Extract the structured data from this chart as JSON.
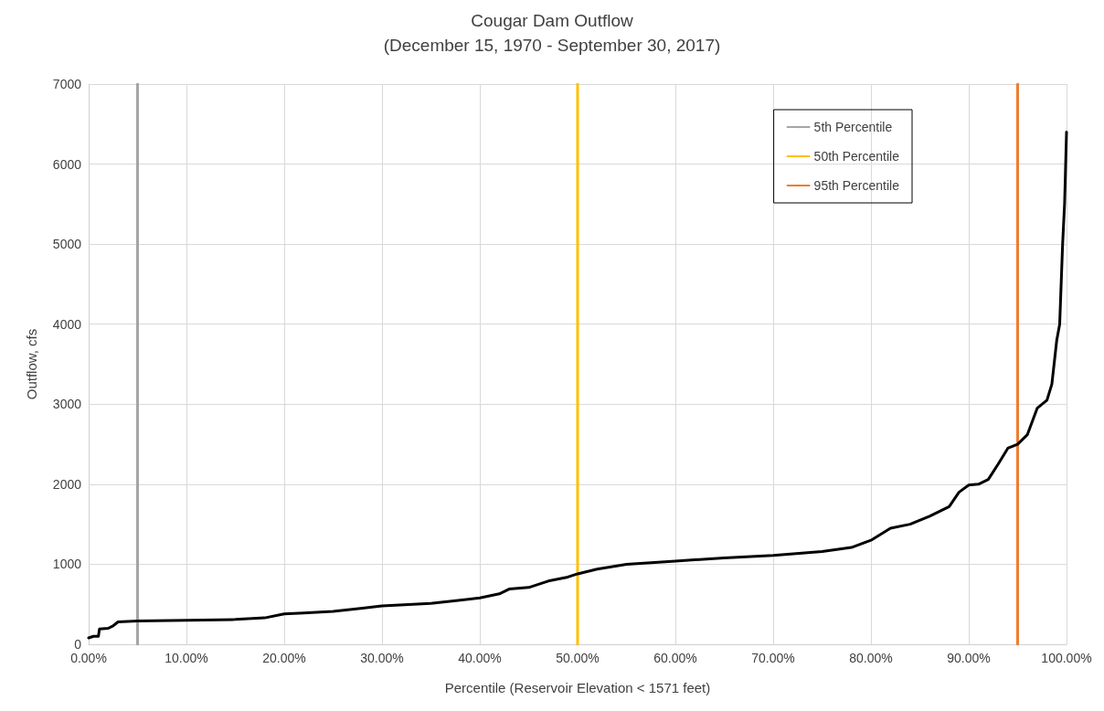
{
  "chart_data": {
    "type": "line",
    "title": "Cougar Dam Outflow",
    "subtitle": "(December 15, 1970 - September 30, 2017)",
    "xlabel": "Percentile (Reservoir Elevation < 1571 feet)",
    "ylabel": "Outflow, cfs",
    "x": [
      0,
      0.5,
      1,
      1.1,
      2,
      2.5,
      3,
      5,
      10,
      15,
      18,
      20,
      22,
      25,
      28,
      30,
      35,
      38,
      40,
      42,
      43,
      45,
      47,
      49,
      50,
      52,
      55,
      60,
      65,
      70,
      75,
      78,
      80,
      82,
      84,
      86,
      88,
      89,
      90,
      91,
      92,
      93,
      94,
      95,
      96,
      97,
      98,
      98.5,
      99,
      99.3,
      99.6,
      99.8,
      100
    ],
    "series": [
      {
        "name": "5th Percentile",
        "color": "#a5a5a5",
        "x": [
          5,
          5
        ],
        "values": [
          0,
          7000
        ]
      },
      {
        "name": "50th Percentile",
        "color": "#ffc000",
        "x": [
          50,
          50
        ],
        "values": [
          0,
          7000
        ]
      },
      {
        "name": "95th Percentile",
        "color": "#ed7d31",
        "x": [
          95,
          95
        ],
        "values": [
          0,
          7000
        ]
      },
      {
        "color": "#000000",
        "values": [
          80,
          100,
          100,
          190,
          200,
          230,
          280,
          290,
          300,
          310,
          330,
          380,
          390,
          410,
          450,
          480,
          510,
          550,
          580,
          630,
          690,
          710,
          790,
          840,
          880,
          940,
          1000,
          1040,
          1080,
          1110,
          1160,
          1210,
          1300,
          1450,
          1500,
          1600,
          1720,
          1900,
          1990,
          2000,
          2060,
          2250,
          2450,
          2500,
          2620,
          2950,
          3050,
          3250,
          3800,
          4000,
          5000,
          5500,
          6400
        ]
      }
    ],
    "xlim": [
      0,
      100
    ],
    "xticks": [
      {
        "value": 0,
        "label": "0.00%"
      },
      {
        "value": 10,
        "label": "10.00%"
      },
      {
        "value": 20,
        "label": "20.00%"
      },
      {
        "value": 30,
        "label": "30.00%"
      },
      {
        "value": 40,
        "label": "40.00%"
      },
      {
        "value": 50,
        "label": "50.00%"
      },
      {
        "value": 60,
        "label": "60.00%"
      },
      {
        "value": 70,
        "label": "70.00%"
      },
      {
        "value": 80,
        "label": "80.00%"
      },
      {
        "value": 90,
        "label": "90.00%"
      },
      {
        "value": 100,
        "label": "100.00%"
      }
    ],
    "ylim": [
      0,
      7000
    ],
    "yticks": [
      0,
      1000,
      2000,
      3000,
      4000,
      5000,
      6000,
      7000
    ],
    "grid": true,
    "legend": "top right",
    "marker": "none",
    "line_style": "solid"
  }
}
